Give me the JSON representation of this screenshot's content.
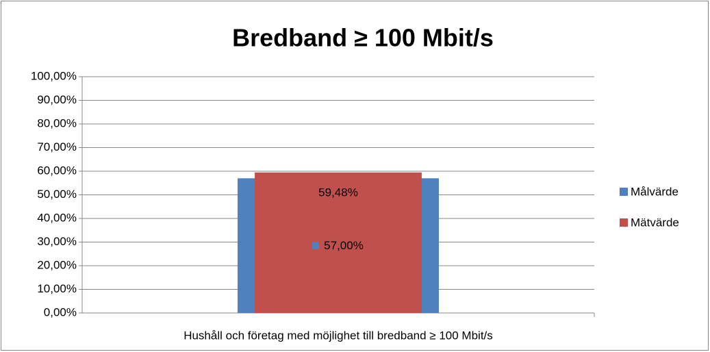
{
  "chart_data": {
    "type": "bar",
    "title": "Bredband ≥ 100 Mbit/s",
    "categories": [
      "Hushåll och företag med möjlighet till bredband ≥ 100 Mbit/s"
    ],
    "series": [
      {
        "name": "Målvärde",
        "color": "#4f81bd",
        "values": [
          57
        ],
        "value_labels": [
          "57,00%"
        ]
      },
      {
        "name": "Mätvärde",
        "color": "#c0504d",
        "values": [
          59.48
        ],
        "value_labels": [
          "59,48%"
        ]
      }
    ],
    "ylim": [
      0,
      100
    ],
    "yticks": [
      {
        "value": 0,
        "label": "0,00%"
      },
      {
        "value": 10,
        "label": "10,00%"
      },
      {
        "value": 20,
        "label": "20,00%"
      },
      {
        "value": 30,
        "label": "30,00%"
      },
      {
        "value": 40,
        "label": "40,00%"
      },
      {
        "value": 50,
        "label": "50,00%"
      },
      {
        "value": 60,
        "label": "60,00%"
      },
      {
        "value": 70,
        "label": "70,00%"
      },
      {
        "value": 80,
        "label": "80,00%"
      },
      {
        "value": 90,
        "label": "90,00%"
      },
      {
        "value": 100,
        "label": "100,00%"
      }
    ],
    "grid": true,
    "legend": "right"
  }
}
